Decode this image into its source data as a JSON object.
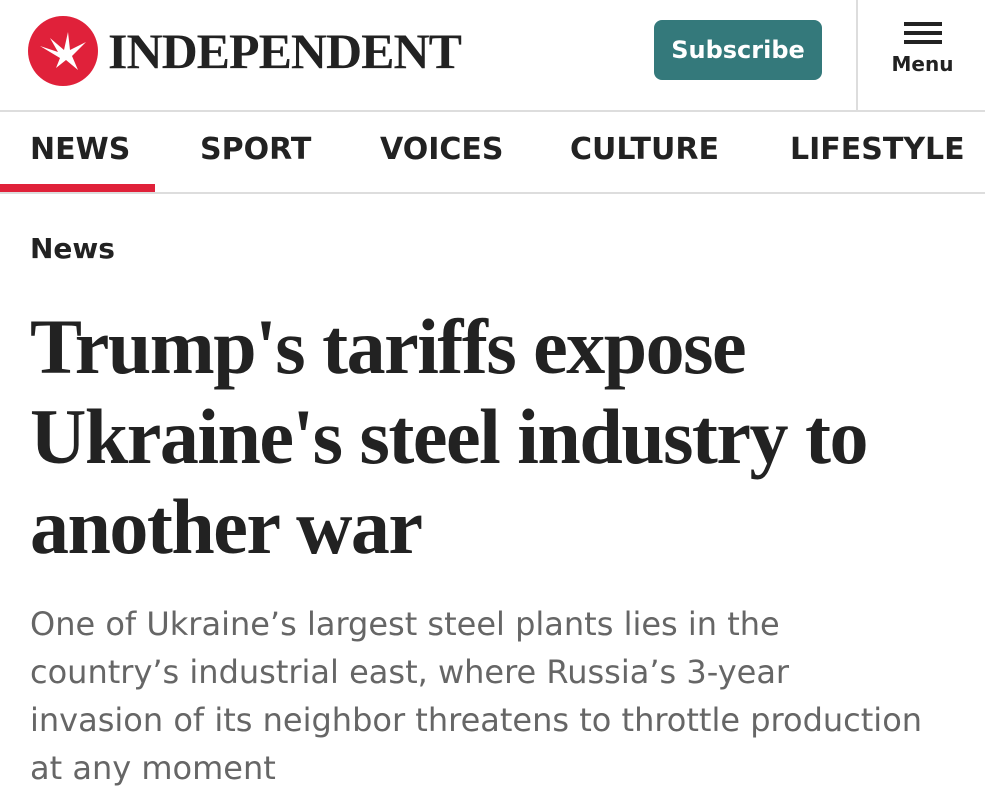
{
  "header": {
    "logo": "INDEPENDENT",
    "subscribe": "Subscribe",
    "menu": "Menu"
  },
  "nav": [
    "NEWS",
    "SPORT",
    "VOICES",
    "CULTURE",
    "LIFESTYLE"
  ],
  "article": {
    "section": "News",
    "headline": "Trump's tariffs expose Ukraine's steel industry to another war",
    "standfirst": "One of Ukraine’s largest steel plants lies in the country’s industrial east, where Russia’s 3-year invasion of its neighbor threatens to throttle production at any moment"
  }
}
